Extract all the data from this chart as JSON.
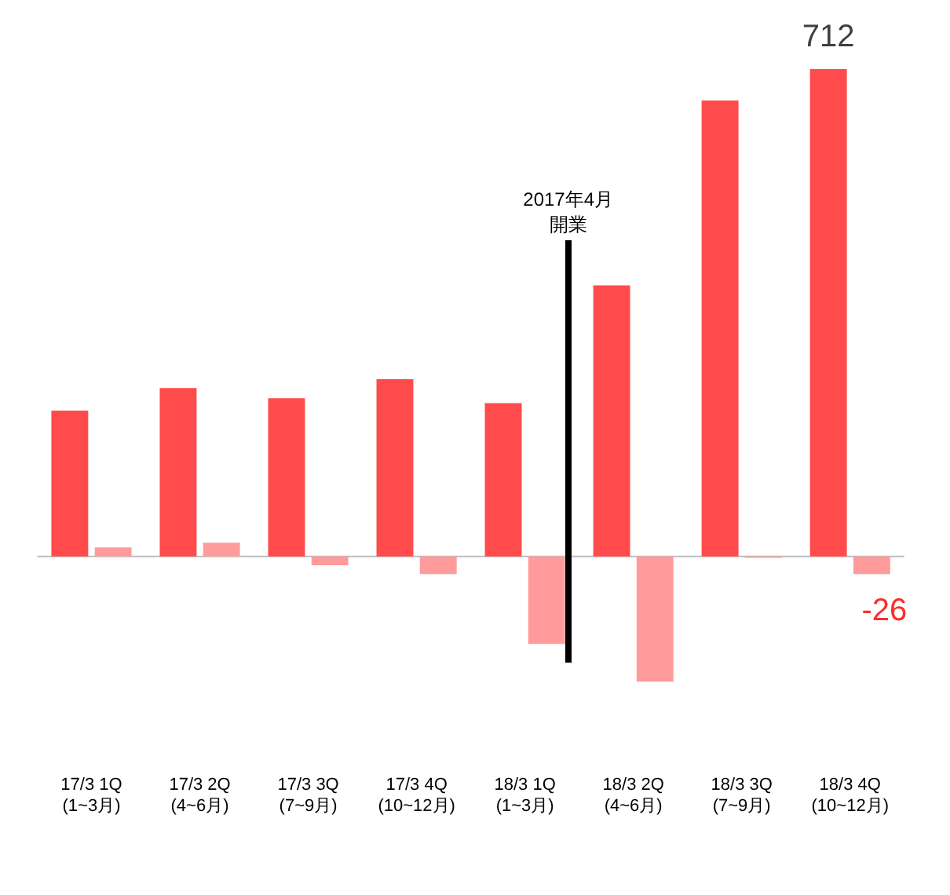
{
  "chart_data": {
    "type": "bar",
    "categories": [
      "17/3 1Q\n(1~3月)",
      "17/3 2Q\n(4~6月)",
      "17/3 3Q\n(7~9月)",
      "17/3 4Q\n(10~12月)",
      "18/3 1Q\n(1~3月)",
      "18/3 2Q\n(4~6月)",
      "18/3 3Q\n(7~9月)",
      "18/3 4Q\n(10~12月)"
    ],
    "series": [
      {
        "color": "#ff4b4b",
        "values": [
          213,
          246,
          231,
          259,
          224,
          396,
          666,
          712
        ],
        "value_labels": [
          null,
          null,
          null,
          null,
          null,
          null,
          null,
          "712"
        ]
      },
      {
        "color": "#ff9b9b",
        "values": [
          13,
          20,
          -13,
          -26,
          -128,
          -183,
          -2,
          -26
        ],
        "value_labels": [
          null,
          null,
          null,
          null,
          null,
          null,
          null,
          "-26"
        ]
      }
    ],
    "annotations": [
      "2017年4月",
      "開業"
    ],
    "grid": false,
    "legend": false
  }
}
